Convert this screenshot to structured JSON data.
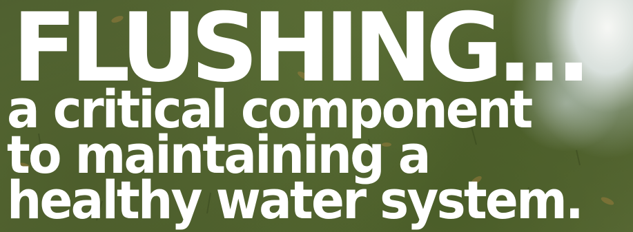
{
  "headline": "FLUSHING...",
  "subtitle_lines": [
    "a critical component",
    "to maintaining a",
    "healthy water system."
  ]
}
